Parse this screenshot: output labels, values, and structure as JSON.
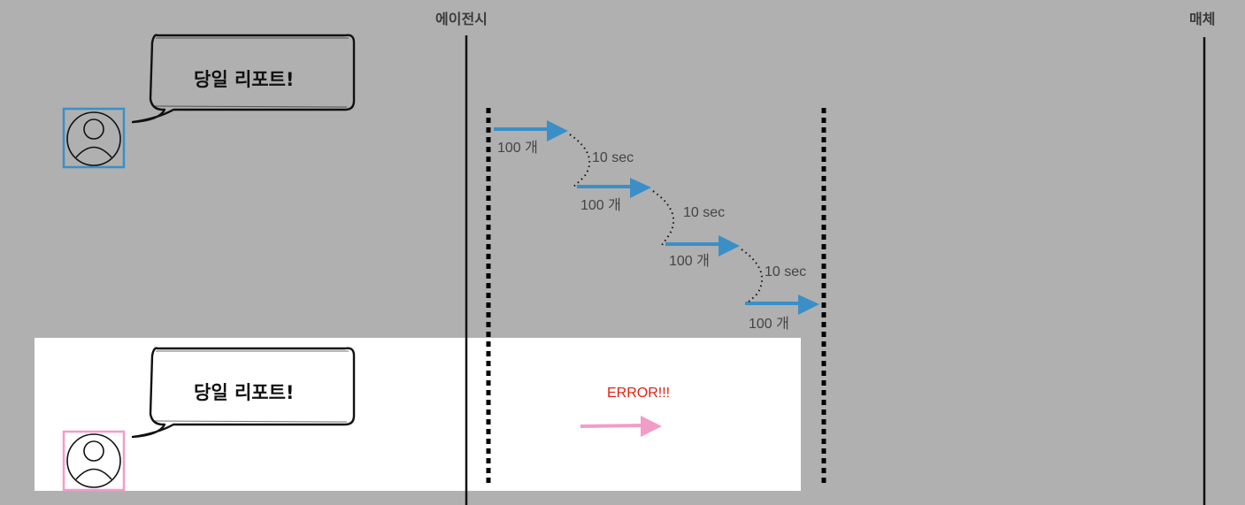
{
  "lifelines": {
    "agent_label": "에이전시",
    "media_label": "매체"
  },
  "top_scenario": {
    "bubble_text": "당일 리포트!",
    "user_color": "#3b8fc6",
    "arrow_color": "#3b8fc6",
    "batches": [
      {
        "count_label": "100 개"
      },
      {
        "count_label": "100 개"
      },
      {
        "count_label": "100 개"
      },
      {
        "count_label": "100 개"
      }
    ],
    "delays": [
      {
        "label": "10 sec"
      },
      {
        "label": "10 sec"
      },
      {
        "label": "10 sec"
      }
    ]
  },
  "bottom_scenario": {
    "bubble_text": "당일 리포트!",
    "user_color": "#f29cc8",
    "arrow_color": "#f29cc8",
    "error_text": "ERROR!!!",
    "error_color": "#e02010"
  },
  "icons": {
    "user": "user-avatar-icon",
    "bubble": "speech-bubble-icon",
    "arrow": "arrow-right-icon"
  }
}
